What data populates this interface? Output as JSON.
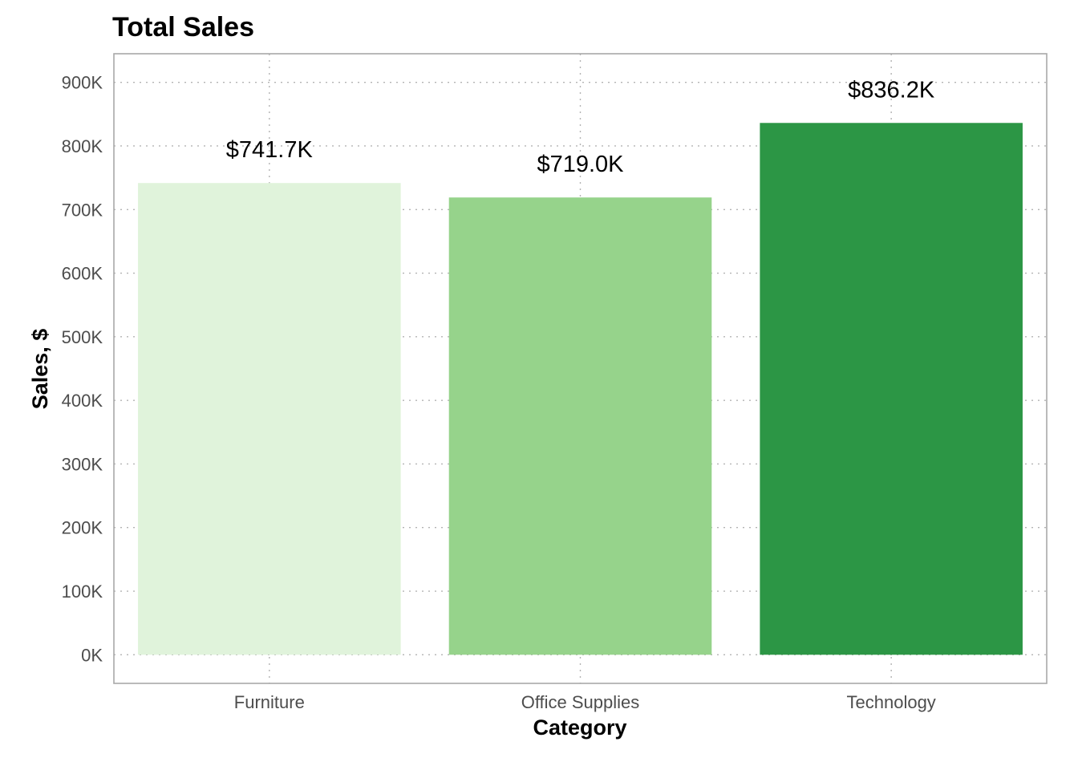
{
  "chart_data": {
    "type": "bar",
    "title": "Total Sales",
    "xlabel": "Category",
    "ylabel": "Sales, $",
    "categories": [
      "Furniture",
      "Office Supplies",
      "Technology"
    ],
    "values": [
      741.7,
      719.0,
      836.2
    ],
    "value_unit": "thousands of dollars",
    "data_labels": [
      "$741.7K",
      "$719.0K",
      "$836.2K"
    ],
    "colors": [
      "#e0f3db",
      "#96d38b",
      "#2c9645"
    ],
    "ylim": [
      -45,
      945
    ],
    "yticks": [
      0,
      100,
      200,
      300,
      400,
      500,
      600,
      700,
      800,
      900
    ],
    "ytick_labels": [
      "0K",
      "100K",
      "200K",
      "300K",
      "400K",
      "500K",
      "600K",
      "700K",
      "800K",
      "900K"
    ],
    "grid": true,
    "grid_style": "dotted",
    "legend": "none"
  }
}
